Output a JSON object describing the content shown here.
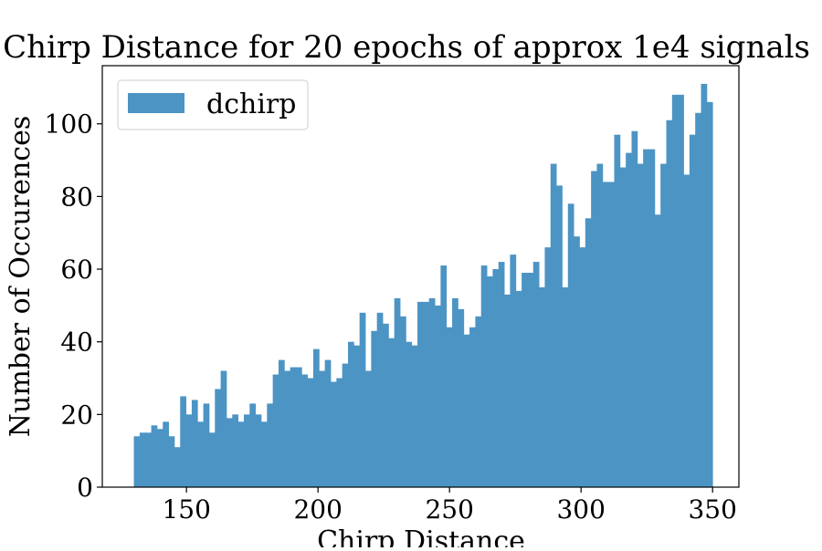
{
  "chart_data": {
    "type": "bar",
    "title": "Chirp Distance for 20 epochs of approx 1e4 signals",
    "xlabel": "Chirp Distance",
    "ylabel": "Number of Occurences",
    "xlim": [
      118,
      360
    ],
    "ylim": [
      0,
      116
    ],
    "x_ticks": [
      150,
      200,
      250,
      300,
      350
    ],
    "y_ticks": [
      0,
      20,
      40,
      60,
      80,
      100
    ],
    "bin_start": 130,
    "bin_end": 350,
    "bar_color": "#4c94c4",
    "legend_position": "upper-left",
    "series": [
      {
        "name": "dchirp",
        "values": [
          14,
          15,
          15,
          17,
          16,
          18,
          14,
          11,
          25,
          20,
          24,
          18,
          23,
          15,
          27,
          32,
          19,
          20,
          18,
          20,
          23,
          20,
          18,
          23,
          31,
          35,
          32,
          33,
          33,
          31,
          30,
          38,
          32,
          35,
          29,
          30,
          34,
          40,
          39,
          48,
          32,
          43,
          48,
          45,
          41,
          52,
          47,
          40,
          39,
          51,
          51,
          52,
          50,
          61,
          44,
          52,
          49,
          42,
          44,
          47,
          61,
          58,
          60,
          62,
          53,
          64,
          54,
          59,
          59,
          62,
          55,
          66,
          89,
          83,
          55,
          78,
          69,
          66,
          74,
          87,
          89,
          84,
          84,
          97,
          88,
          92,
          98,
          89,
          93,
          93,
          75,
          89,
          101,
          108,
          108,
          86,
          97,
          103,
          111,
          106
        ]
      }
    ]
  }
}
